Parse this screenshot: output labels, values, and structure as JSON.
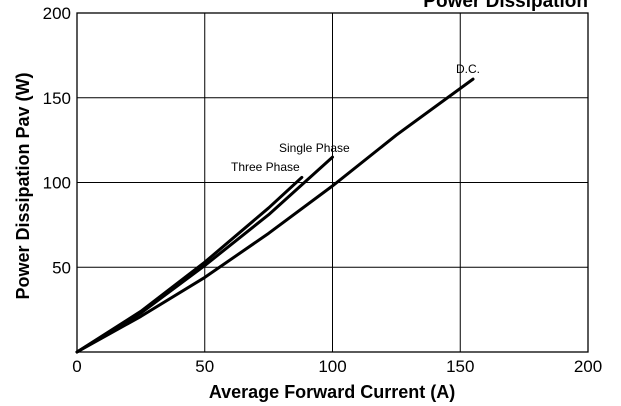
{
  "chart_data": {
    "type": "line",
    "title": "Power Dissipation",
    "xlabel": "Average Forward Current (A)",
    "ylabel": "Power Dissipation Pav (W)",
    "xlim": [
      0,
      200
    ],
    "ylim": [
      0,
      200
    ],
    "x_ticks": [
      "0",
      "50",
      "100",
      "150",
      "200"
    ],
    "y_ticks": [
      "50",
      "100",
      "150",
      "200"
    ],
    "grid": true,
    "series": [
      {
        "name": "D.C.",
        "x": [
          0,
          25,
          50,
          75,
          100,
          125,
          155
        ],
        "y": [
          0,
          21,
          44,
          70,
          98,
          128,
          161
        ]
      },
      {
        "name": "Single Phase",
        "x": [
          0,
          25,
          50,
          75,
          100
        ],
        "y": [
          0,
          23,
          51,
          81,
          115
        ]
      },
      {
        "name": "Three Phase",
        "x": [
          0,
          25,
          50,
          75,
          88
        ],
        "y": [
          0,
          24,
          53,
          85,
          103
        ]
      }
    ]
  }
}
